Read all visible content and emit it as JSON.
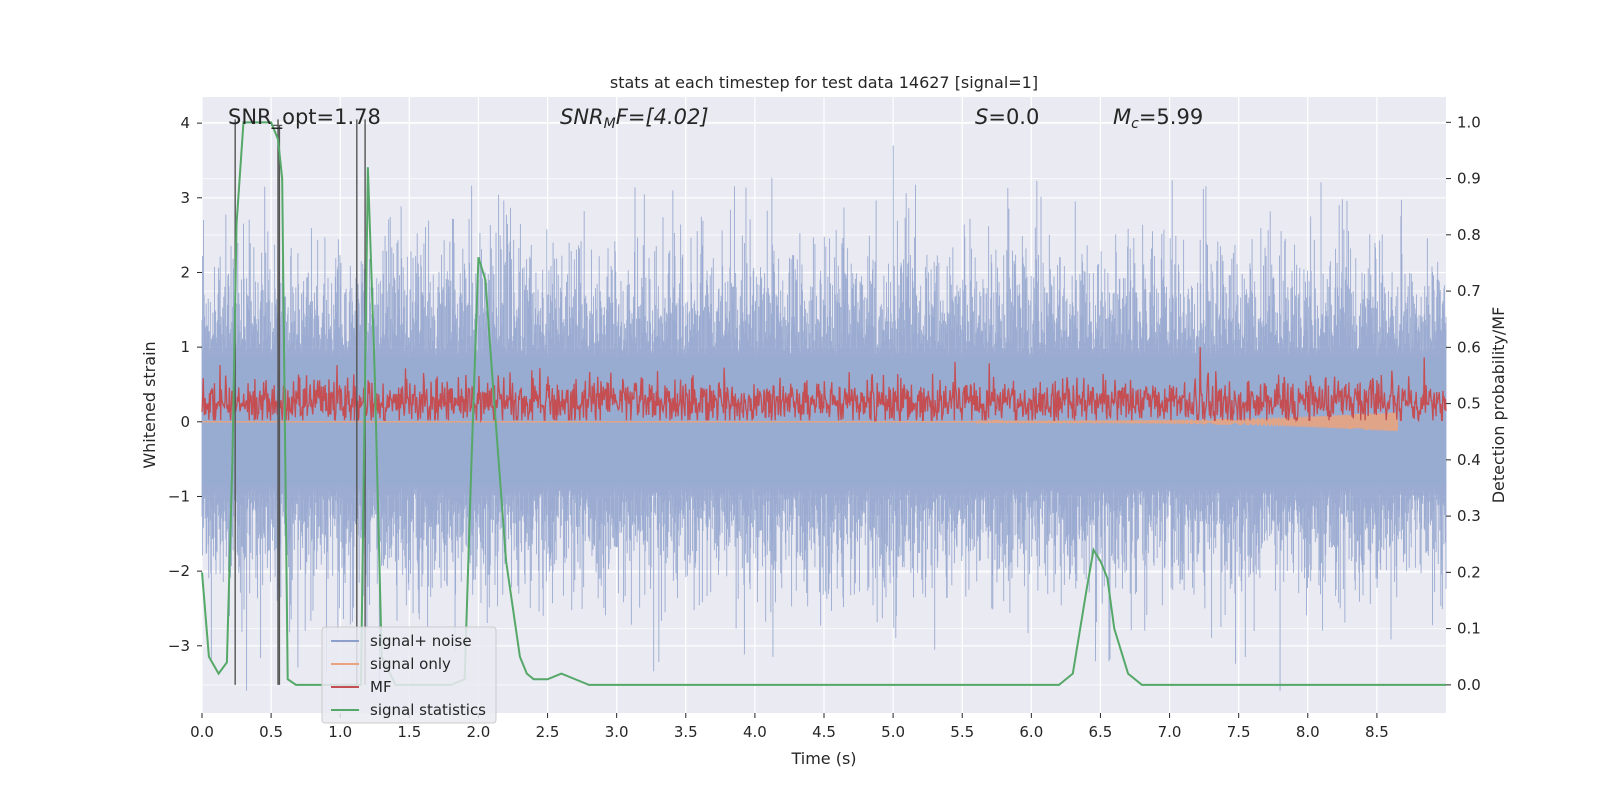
{
  "chart_data": {
    "type": "line",
    "title": "stats at each timestep for test data 14627 [signal=1]",
    "xlabel": "Time (s)",
    "ylabel": "Whitened strain",
    "y2label": "Detection probability/MF",
    "xlim": [
      0.0,
      9.0
    ],
    "ylim": [
      -3.9,
      4.35
    ],
    "y2lim": [
      -0.05,
      1.045
    ],
    "xticks": [
      "0.0",
      "0.5",
      "1.0",
      "1.5",
      "2.0",
      "2.5",
      "3.0",
      "3.5",
      "4.0",
      "4.5",
      "5.0",
      "5.5",
      "6.0",
      "6.5",
      "7.0",
      "7.5",
      "8.0",
      "8.5"
    ],
    "yticks": [
      "4",
      "3",
      "2",
      "1",
      "0",
      "−1",
      "−2",
      "−3"
    ],
    "y2ticks": [
      "1.0",
      "0.9",
      "0.8",
      "0.7",
      "0.6",
      "0.5",
      "0.4",
      "0.3",
      "0.2",
      "0.1",
      "0.0"
    ],
    "grid": true,
    "legend_position": "lower-left",
    "annotations": {
      "snr_opt": "SNR_opt=1.78",
      "snr_mf_main": "SNR",
      "snr_mf_sub": "M",
      "snr_mf_rest": "F=[4.02]",
      "s_main": "S",
      "s_rest": "=0.0",
      "mc_main": "M",
      "mc_sub": "c",
      "mc_rest": "=5.99"
    },
    "series": [
      {
        "name": "signal+ noise",
        "color": "#8da0cb",
        "description_range": [
          -3.6,
          3.7
        ]
      },
      {
        "name": "signal only",
        "color": "#e8a47f"
      },
      {
        "name": "MF",
        "color": "#c44e52"
      },
      {
        "name": "signal statistics",
        "color": "#55a868"
      }
    ],
    "signal_statistics": {
      "x": [
        0.0,
        0.05,
        0.12,
        0.18,
        0.22,
        0.25,
        0.3,
        0.35,
        0.4,
        0.45,
        0.5,
        0.55,
        0.58,
        0.62,
        0.68,
        0.72,
        0.8,
        0.9,
        1.0,
        1.05,
        1.1,
        1.15,
        1.2,
        1.25,
        1.3,
        1.4,
        1.5,
        1.6,
        1.7,
        1.8,
        1.9,
        1.95,
        2.0,
        2.05,
        2.1,
        2.2,
        2.3,
        2.35,
        2.4,
        2.5,
        2.6,
        2.7,
        2.8,
        2.9,
        3.0,
        3.5,
        4.0,
        5.0,
        6.0,
        6.2,
        6.3,
        6.4,
        6.45,
        6.5,
        6.55,
        6.6,
        6.7,
        6.8,
        7.0,
        7.5,
        8.0,
        8.5,
        9.0
      ],
      "y": [
        0.2,
        0.05,
        0.02,
        0.04,
        0.4,
        0.82,
        1.0,
        1.0,
        1.0,
        1.0,
        1.0,
        0.97,
        0.9,
        0.01,
        0.0,
        0.0,
        0.0,
        0.0,
        0.0,
        0.0,
        0.0,
        0.0,
        0.92,
        0.55,
        0.05,
        0.0,
        0.0,
        0.0,
        0.0,
        0.0,
        0.01,
        0.4,
        0.76,
        0.72,
        0.55,
        0.22,
        0.05,
        0.02,
        0.01,
        0.01,
        0.02,
        0.01,
        0.0,
        0.0,
        0.0,
        0.0,
        0.0,
        0.0,
        0.0,
        0.0,
        0.02,
        0.17,
        0.24,
        0.22,
        0.19,
        0.1,
        0.02,
        0.0,
        0.0,
        0.0,
        0.0,
        0.0,
        0.0
      ]
    },
    "vertical_markers_x": [
      0.24,
      0.55,
      1.12,
      1.18
    ],
    "marker_bracket": [
      0.5,
      0.58
    ]
  }
}
